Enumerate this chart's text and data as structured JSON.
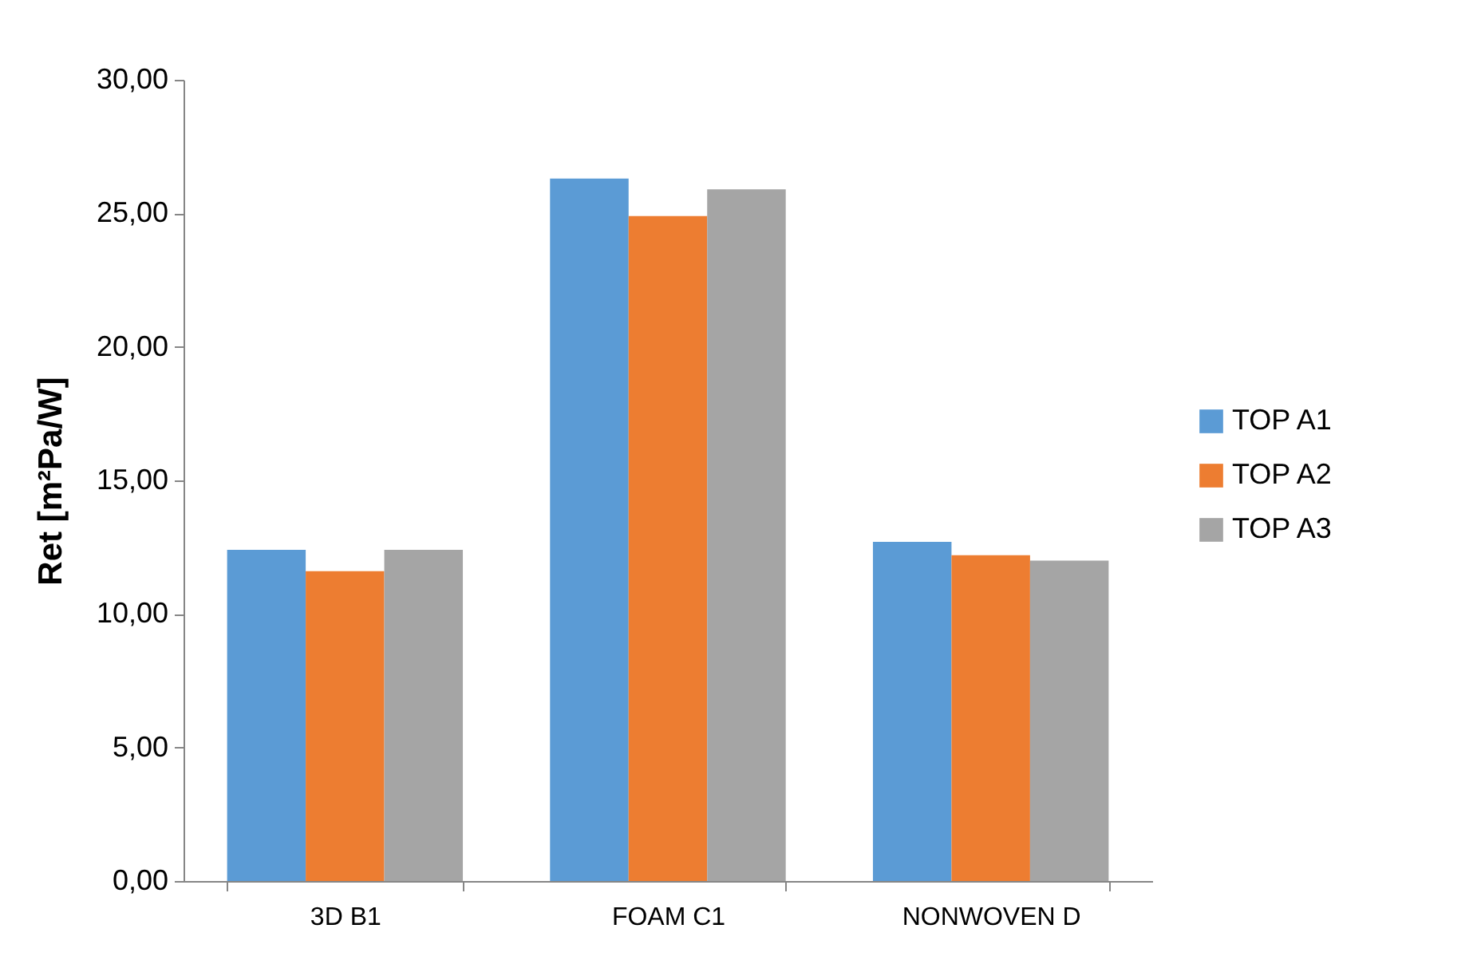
{
  "chart_data": {
    "type": "bar",
    "ylabel": "Ret [m²Pa/W]",
    "categories": [
      "3D B1",
      "FOAM C1",
      "NONWOVEN D"
    ],
    "series": [
      {
        "name": "TOP A1",
        "color": "#5b9bd5",
        "values": [
          12.4,
          26.3,
          12.7
        ]
      },
      {
        "name": "TOP A2",
        "color": "#ed7d31",
        "values": [
          11.6,
          24.9,
          12.2
        ]
      },
      {
        "name": "TOP A3",
        "color": "#a5a5a5",
        "values": [
          12.4,
          25.9,
          12.0
        ]
      }
    ],
    "ylim": [
      0,
      30
    ],
    "yticks": [
      {
        "value": 0,
        "label": "0,00"
      },
      {
        "value": 5,
        "label": "5,00"
      },
      {
        "value": 10,
        "label": "10,00"
      },
      {
        "value": 15,
        "label": "15,00"
      },
      {
        "value": 20,
        "label": "20,00"
      },
      {
        "value": 25,
        "label": "25,00"
      },
      {
        "value": 30,
        "label": "30,00"
      }
    ],
    "grid": false,
    "legend": "right"
  }
}
